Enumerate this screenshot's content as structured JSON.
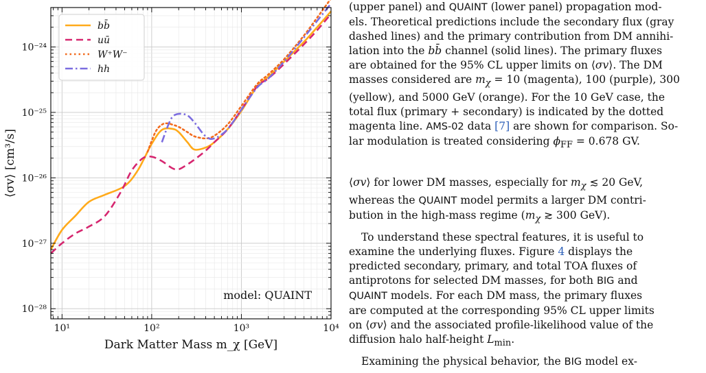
{
  "chart_data": {
    "type": "line",
    "xscale": "log",
    "yscale": "log",
    "xlim": [
      7.5,
      10000
    ],
    "ylim": [
      7e-29,
      4e-24
    ],
    "xlabel": "Dark Matter Mass m_χ [GeV]",
    "ylabel": "⟨σv⟩ [cm³/s]",
    "x_ticks": [
      "10¹",
      "10²",
      "10³",
      "10⁴"
    ],
    "y_ticks": [
      "10⁻²⁸",
      "10⁻²⁷",
      "10⁻²⁶",
      "10⁻²⁵",
      "10⁻²⁴"
    ],
    "annotation": "model: QUAINT",
    "grid": true,
    "legend_position": "top-left",
    "series": [
      {
        "name": "bb̄",
        "color": "#FFAA1A",
        "dash": "solid",
        "x": [
          7.5,
          10,
          14,
          20,
          30,
          50,
          70,
          100,
          130,
          170,
          200,
          250,
          300,
          400,
          500,
          700,
          1000,
          1500,
          2000,
          3000,
          5000,
          7000,
          10000
        ],
        "y": [
          8e-28,
          1.6e-27,
          2.6e-27,
          4.3e-27,
          5.5e-27,
          7.5e-27,
          1.3e-26,
          3.3e-26,
          5.4e-26,
          5.6e-26,
          5e-26,
          3.5e-26,
          2.7e-26,
          2.9e-26,
          3.5e-26,
          5.5e-26,
          1.05e-25,
          2.5e-25,
          3.5e-25,
          6e-25,
          1.2e-24,
          2e-24,
          3.5e-24
        ]
      },
      {
        "name": "uū",
        "color": "#D6266F",
        "dash": "dashed",
        "x": [
          7.5,
          10,
          14,
          20,
          30,
          45,
          60,
          80,
          100,
          130,
          170,
          200,
          250,
          300,
          400,
          500,
          700,
          1000,
          1500,
          2000,
          3000,
          5000,
          7000,
          10000
        ],
        "y": [
          7e-28,
          1e-27,
          1.4e-27,
          1.8e-27,
          2.6e-27,
          6e-27,
          1.3e-26,
          2e-26,
          2.1e-26,
          1.8e-26,
          1.4e-26,
          1.35e-26,
          1.6e-26,
          1.9e-26,
          2.6e-26,
          3.5e-26,
          5.5e-26,
          1.1e-25,
          2.5e-25,
          3.3e-25,
          5.5e-25,
          1.1e-24,
          1.8e-24,
          3.2e-24
        ]
      },
      {
        "name": "W⁺W⁻",
        "color": "#F26B1D",
        "dash": "dotted",
        "x": [
          90,
          110,
          130,
          150,
          170,
          200,
          250,
          300,
          400,
          500,
          700,
          1000,
          1500,
          2000,
          3000,
          5000,
          7000,
          10000
        ],
        "y": [
          2.5e-26,
          5e-26,
          6.5e-26,
          6.8e-26,
          6.5e-26,
          6e-26,
          5e-26,
          4.3e-26,
          4e-26,
          4.4e-26,
          6.5e-26,
          1.25e-25,
          2.7e-25,
          3.8e-25,
          6.5e-25,
          1.5e-24,
          2.8e-24,
          5.5e-24
        ]
      },
      {
        "name": "hh",
        "color": "#7B6CE0",
        "dash": "dashdot",
        "x": [
          130,
          150,
          170,
          200,
          250,
          300,
          400,
          500,
          700,
          1000,
          1500,
          2000,
          3000,
          5000,
          7000,
          10000
        ],
        "y": [
          3.5e-26,
          6e-26,
          8.5e-26,
          9.5e-26,
          9e-26,
          7e-26,
          4.3e-26,
          4e-26,
          5.5e-26,
          1.1e-25,
          2.4e-25,
          3.3e-25,
          6e-25,
          1.4e-24,
          2.5e-24,
          4.6e-24
        ]
      }
    ]
  },
  "caption": {
    "lines": [
      "(upper panel) and QUAINT (lower panel) propagation mod-",
      "els. Theoretical predictions include the secondary flux (gray",
      "dashed lines) and the primary contribution from DM annihi-",
      "lation into the bb̄ channel (solid lines). The primary fluxes",
      "are obtained for the 95% CL upper limits on ⟨σv⟩. The DM",
      "masses considered are m_χ = 10 (magenta), 100 (purple), 300",
      "(yellow), and 5000 GeV (orange). For the 10 GeV case, the",
      "total flux (primary + secondary) is indicated by the dotted",
      "magenta line. AMS-02 data [7] are shown for comparison. So-",
      "lar modulation is treated considering ϕ_FF = 0.678 GV."
    ]
  },
  "body": {
    "p1": [
      "⟨σv⟩ for lower DM masses, especially for m_χ ≲ 20 GeV,",
      "whereas the QUAINT model permits a larger DM contri-",
      "bution in the high-mass regime (m_χ ≳ 300 GeV)."
    ],
    "p2": [
      "To understand these spectral features, it is useful to",
      "examine the underlying fluxes. Figure 4 displays the",
      "predicted secondary, primary, and total TOA fluxes of",
      "antiprotons for selected DM masses, for both BIG and",
      "QUAINT models. For each DM mass, the primary fluxes",
      "are computed at the corresponding 95% CL upper limits",
      "on ⟨σv⟩ and the associated profile-likelihood value of the",
      "diffusion halo half-height L_min."
    ],
    "p3": [
      "Examining the physical behavior, the BIG model ex-"
    ]
  }
}
